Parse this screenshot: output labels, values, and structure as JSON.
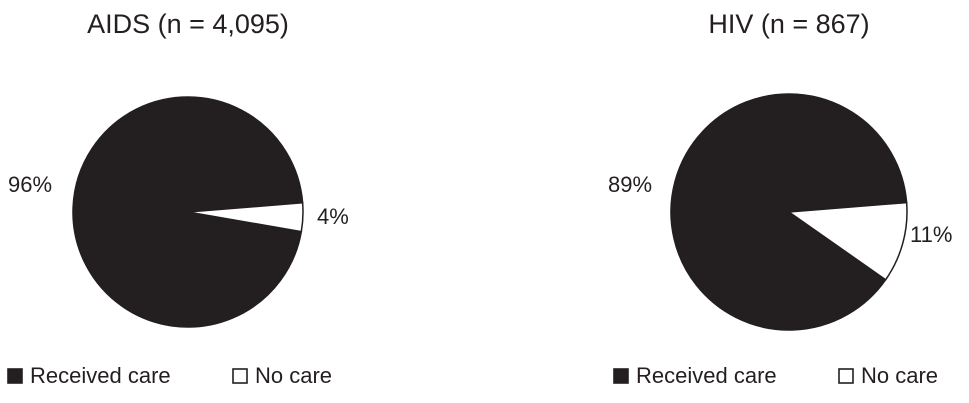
{
  "chart_data": [
    {
      "type": "pie",
      "title": "AIDS (n = 4,095)",
      "slices": [
        {
          "label": "Received care",
          "value": 96,
          "display": "96%",
          "color": "#231f20"
        },
        {
          "label": "No care",
          "value": 4,
          "display": "4%",
          "color": "#ffffff"
        }
      ],
      "legend": [
        "Received care",
        "No care"
      ],
      "legend_position": "bottom"
    },
    {
      "type": "pie",
      "title": "HIV (n = 867)",
      "slices": [
        {
          "label": "Received care",
          "value": 89,
          "display": "89%",
          "color": "#231f20"
        },
        {
          "label": "No care",
          "value": 11,
          "display": "11%",
          "color": "#ffffff"
        }
      ],
      "legend": [
        "Received care",
        "No care"
      ],
      "legend_position": "bottom"
    }
  ]
}
